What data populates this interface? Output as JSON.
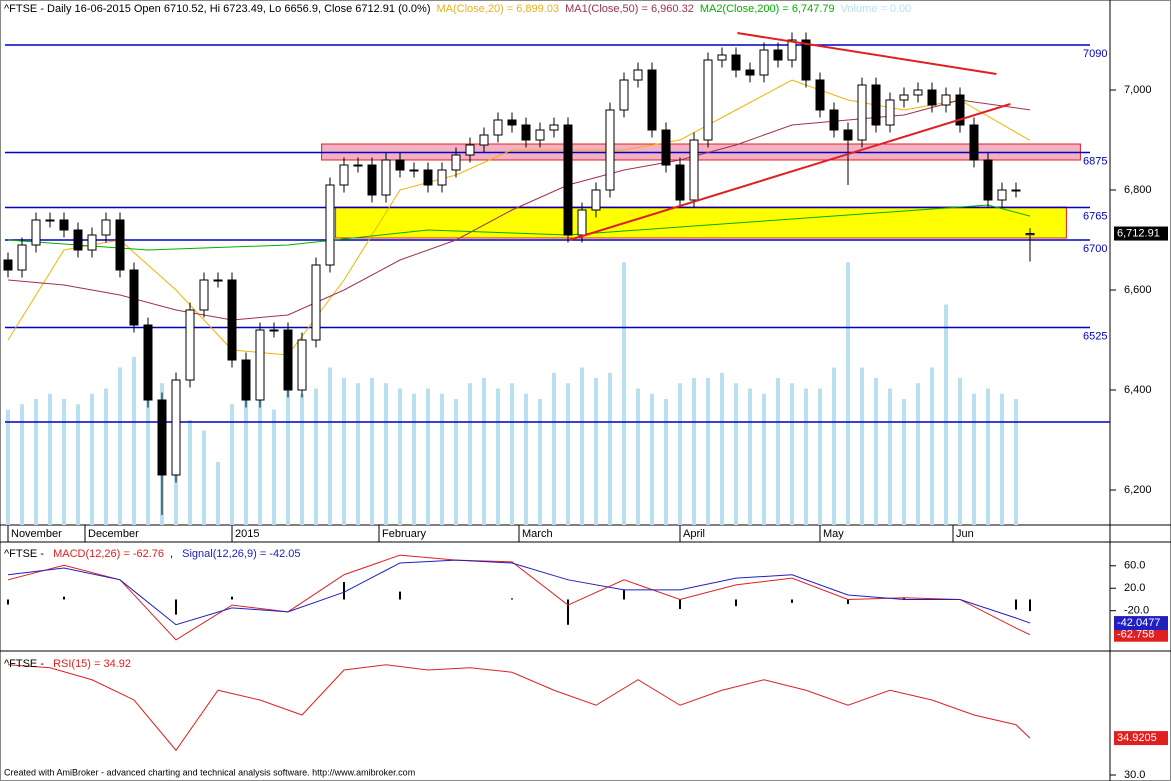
{
  "chart_data": [
    {
      "type": "candlestick",
      "title": [
        {
          "text": "^FTSE - Daily 16-06-2015 Open 6710.52, Hi 6723.49, Lo 6656.9, Close 6712.91 (0.0%)",
          "color": "#000000"
        },
        {
          "text": "MA(Close,20) = 6,899.03",
          "color": "#e8b020"
        },
        {
          "text": "MA1(Close,50) = 6,960.32",
          "color": "#a03050"
        },
        {
          "text": "MA2(Close,200) = 6,747.79",
          "color": "#00b000"
        },
        {
          "text": "Volume = 0.00",
          "color": "#b8e0f0"
        }
      ],
      "xticks": [
        {
          "value": 0,
          "label": "November"
        },
        {
          "value": 5.5,
          "label": "December"
        },
        {
          "value": 16,
          "label": "2015"
        },
        {
          "value": 26.5,
          "label": "February"
        },
        {
          "value": 36.5,
          "label": "March"
        },
        {
          "value": 48,
          "label": "April"
        },
        {
          "value": 58,
          "label": "May"
        },
        {
          "value": 67.5,
          "label": "Jun"
        }
      ],
      "open": [
        6660,
        6640,
        6690,
        6740,
        6740,
        6720,
        6680,
        6710,
        6740,
        6640,
        6530,
        6380,
        6230,
        6420,
        6560,
        6620,
        6620,
        6460,
        6380,
        6520,
        6520,
        6400,
        6500,
        6650,
        6810,
        6850,
        6850,
        6790,
        6860,
        6840,
        6840,
        6810,
        6840,
        6870,
        6890,
        6910,
        6940,
        6930,
        6900,
        6920,
        6930,
        6710,
        6760,
        6800,
        6960,
        7020,
        7040,
        6920,
        6850,
        6780,
        6900,
        7060,
        7070,
        7040,
        7030,
        7080,
        7060,
        7100,
        7020,
        6960,
        6920,
        6900,
        7010,
        6930,
        6980,
        6990,
        7000,
        6970,
        6990,
        6930,
        6860,
        6780,
        6800,
        6710.52
      ],
      "high": [
        6675,
        6705,
        6755,
        6755,
        6755,
        6735,
        6725,
        6755,
        6755,
        6655,
        6545,
        6395,
        6435,
        6575,
        6635,
        6635,
        6635,
        6475,
        6535,
        6535,
        6535,
        6515,
        6665,
        6825,
        6865,
        6865,
        6865,
        6875,
        6875,
        6855,
        6855,
        6855,
        6885,
        6905,
        6925,
        6955,
        6955,
        6945,
        6935,
        6945,
        6945,
        6775,
        6815,
        6975,
        7035,
        7055,
        7055,
        6935,
        6865,
        6915,
        7075,
        7085,
        7085,
        7055,
        7095,
        7095,
        7115,
        7115,
        7035,
        6975,
        6935,
        7025,
        7025,
        6995,
        7005,
        7015,
        7015,
        7005,
        7005,
        6945,
        6875,
        6815,
        6815,
        6723.49
      ],
      "low": [
        6625,
        6625,
        6675,
        6725,
        6705,
        6665,
        6665,
        6695,
        6625,
        6515,
        6365,
        6150,
        6215,
        6405,
        6545,
        6605,
        6445,
        6365,
        6365,
        6505,
        6385,
        6385,
        6485,
        6635,
        6795,
        6835,
        6775,
        6775,
        6825,
        6825,
        6795,
        6795,
        6825,
        6855,
        6875,
        6895,
        6915,
        6885,
        6885,
        6905,
        6695,
        6695,
        6745,
        6785,
        6945,
        7005,
        6905,
        6835,
        6765,
        6765,
        6885,
        7045,
        7025,
        7015,
        7015,
        7045,
        7045,
        7005,
        6945,
        6905,
        6810,
        6885,
        6915,
        6915,
        6965,
        6975,
        6955,
        6955,
        6915,
        6845,
        6765,
        6765,
        6785,
        6656.9
      ],
      "close": [
        6640,
        6690,
        6740,
        6740,
        6720,
        6680,
        6710,
        6740,
        6640,
        6530,
        6380,
        6230,
        6420,
        6560,
        6620,
        6620,
        6460,
        6380,
        6520,
        6520,
        6400,
        6500,
        6650,
        6810,
        6850,
        6850,
        6790,
        6860,
        6840,
        6840,
        6810,
        6840,
        6870,
        6890,
        6910,
        6940,
        6930,
        6900,
        6920,
        6930,
        6710,
        6760,
        6800,
        6960,
        7020,
        7040,
        6920,
        6850,
        6780,
        6900,
        7060,
        7070,
        7040,
        7030,
        7080,
        7060,
        7100,
        7020,
        6960,
        6920,
        6900,
        7010,
        6930,
        6980,
        6990,
        7000,
        6970,
        6990,
        6930,
        6860,
        6780,
        6800,
        6800,
        6712.91
      ],
      "last_price_label": "6,712.91",
      "ylim": [
        6130,
        7180
      ],
      "yticks": [
        {
          "value": 6200,
          "label": "6,200"
        },
        {
          "value": 6400,
          "label": "6,400"
        },
        {
          "value": 6600,
          "label": "6,600"
        },
        {
          "value": 6800,
          "label": "6,800"
        },
        {
          "value": 7000,
          "label": "7,000"
        }
      ],
      "volume": [
        220,
        230,
        240,
        250,
        240,
        230,
        250,
        260,
        300,
        320,
        290,
        270,
        240,
        200,
        180,
        120,
        230,
        250,
        240,
        220,
        260,
        250,
        260,
        300,
        280,
        270,
        280,
        270,
        260,
        250,
        260,
        250,
        240,
        270,
        280,
        260,
        270,
        250,
        240,
        290,
        270,
        300,
        280,
        290,
        500,
        260,
        250,
        240,
        270,
        280,
        280,
        290,
        270,
        260,
        250,
        280,
        270,
        260,
        260,
        300,
        500,
        300,
        280,
        260,
        240,
        270,
        300,
        420,
        280,
        250,
        260,
        250,
        240,
        0
      ],
      "volume_lim": [
        0,
        1000
      ],
      "volume_color": "#b8e0f0",
      "series": [
        {
          "color": "#f0b400",
          "x": [
            0,
            4,
            8,
            12,
            16,
            20,
            24,
            28,
            32,
            36,
            40,
            44,
            48,
            52,
            56,
            60,
            64,
            68,
            73
          ],
          "values": [
            6500,
            6680,
            6700,
            6600,
            6480,
            6470,
            6620,
            6800,
            6830,
            6880,
            6880,
            6880,
            6900,
            6960,
            7020,
            6980,
            6960,
            6980,
            6899.03
          ]
        },
        {
          "color": "#a03050",
          "x": [
            0,
            4,
            8,
            12,
            16,
            20,
            24,
            28,
            32,
            36,
            40,
            44,
            48,
            52,
            56,
            60,
            64,
            68,
            73
          ],
          "values": [
            6620,
            6610,
            6590,
            6560,
            6540,
            6550,
            6600,
            6660,
            6700,
            6760,
            6810,
            6840,
            6860,
            6890,
            6930,
            6940,
            6950,
            6980,
            6960.32
          ]
        },
        {
          "color": "#00b000",
          "x": [
            0,
            10,
            20,
            30,
            40,
            50,
            60,
            70,
            73
          ],
          "values": [
            6700,
            6680,
            6690,
            6720,
            6710,
            6730,
            6750,
            6770,
            6747.79
          ]
        }
      ],
      "levels": [
        7090,
        6875,
        6765,
        6700,
        6525
      ],
      "support_line": 6336,
      "level_color": "#0000c0",
      "zones": [
        {
          "from": 6860,
          "to": 6892,
          "x": [
            22.4,
            76.6
          ],
          "color": "#f4b0c4"
        },
        {
          "from": 6704,
          "to": 6766,
          "x": [
            23.4,
            75.6
          ],
          "color": "#ffff00"
        }
      ],
      "trendlines": [
        {
          "x": [
            52.1,
            70.6
          ],
          "y": [
            7114,
            7032
          ]
        },
        {
          "x": [
            40.1,
            71.6
          ],
          "y": [
            6700,
            6972
          ]
        }
      ],
      "trend_color": "#e02020"
    },
    {
      "type": "line",
      "title": [
        {
          "text": "^FTSE - ",
          "color": "#000000"
        },
        {
          "text": "MACD(12,26) = -62.76",
          "color": "#e02020"
        },
        {
          "text": ", ",
          "color": "#000000"
        },
        {
          "text": "Signal(12,26,9) = -42.05",
          "color": "#2020c0"
        }
      ],
      "ylim": [
        -90,
        97
      ],
      "yticks": [
        {
          "value": 60,
          "label": "60.0"
        },
        {
          "value": 20,
          "label": "20.0"
        },
        {
          "value": -20,
          "label": "-20.0"
        }
      ],
      "histogram": {
        "x": [
          0,
          4,
          8,
          12,
          16,
          20,
          24,
          28,
          32,
          36,
          40,
          44,
          48,
          52,
          56,
          60,
          64,
          68,
          72,
          73
        ],
        "values": [
          -9,
          5,
          0,
          -27,
          5,
          0,
          31,
          14,
          0,
          2,
          -45,
          18,
          -17,
          -12,
          -6,
          -8,
          3,
          0,
          -18,
          -20.7
        ],
        "color": "#000000"
      },
      "series": [
        {
          "color": "#e02020",
          "x": [
            0,
            4,
            8,
            12,
            16,
            20,
            24,
            28,
            32,
            36,
            40,
            44,
            48,
            52,
            56,
            60,
            64,
            68,
            72,
            73
          ],
          "values": [
            35,
            61,
            35,
            -72,
            -10,
            -22,
            44,
            79,
            70,
            67,
            -10,
            35,
            0,
            26,
            38,
            0,
            3,
            0,
            -51,
            -62.76
          ],
          "last": -62.758
        },
        {
          "color": "#2020c0",
          "x": [
            0,
            4,
            8,
            12,
            16,
            20,
            24,
            28,
            32,
            36,
            40,
            44,
            48,
            52,
            56,
            60,
            64,
            68,
            72,
            73
          ],
          "values": [
            44,
            56,
            35,
            -45,
            -15,
            -22,
            13,
            65,
            70,
            65,
            35,
            17,
            17,
            38,
            44,
            8,
            0,
            0,
            -33,
            -42.05
          ],
          "last": -42.0477
        }
      ]
    },
    {
      "type": "line",
      "title": [
        {
          "text": "^FTSE - ",
          "color": "#000000"
        },
        {
          "text": "RSI(15) = 34.92",
          "color": "#e02020"
        }
      ],
      "ylim": [
        29.6,
        46
      ],
      "yticks": [
        {
          "value": 30,
          "label": "30.0"
        }
      ],
      "series": [
        {
          "color": "#e02020",
          "x": [
            0,
            3,
            6,
            9,
            12,
            15,
            18,
            21,
            24,
            27,
            30,
            33,
            36,
            39,
            42,
            45,
            48,
            51,
            54,
            57,
            60,
            63,
            66,
            69,
            72,
            73
          ],
          "values": [
            44.7,
            44.3,
            42.7,
            40,
            33.3,
            41.3,
            40,
            38,
            44,
            44.7,
            44,
            44.3,
            43.7,
            41.3,
            39.3,
            42.7,
            39.3,
            41.3,
            42.7,
            41.3,
            39.3,
            41.3,
            40,
            38,
            36.7,
            34.92
          ],
          "last": 34.9205
        }
      ]
    }
  ],
  "footer": "Created with AmiBroker - advanced charting and technical analysis software. http://www.amibroker.com"
}
